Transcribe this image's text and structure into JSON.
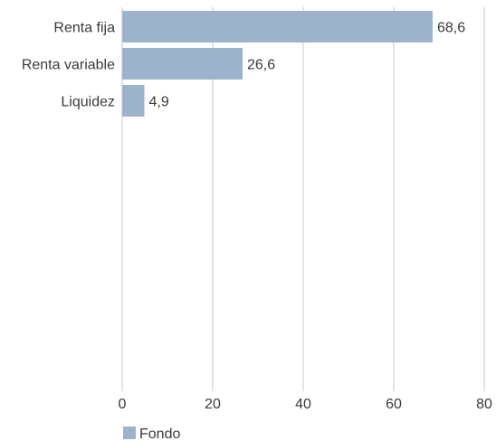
{
  "chart_data": {
    "type": "bar",
    "orientation": "horizontal",
    "categories": [
      "Renta fija",
      "Renta variable",
      "Liquidez"
    ],
    "series": [
      {
        "name": "Fondo",
        "values": [
          68.6,
          26.6,
          4.9
        ],
        "color": "#9db3cc"
      }
    ],
    "data_labels": [
      "68,6",
      "26,6",
      "4,9"
    ],
    "x_ticks": [
      "0",
      "20",
      "40",
      "60",
      "80"
    ],
    "xlim": [
      0,
      80
    ],
    "grid": "vertical",
    "legend": {
      "position": "bottom-left",
      "entries": [
        "Fondo"
      ]
    },
    "title": "",
    "xlabel": "",
    "ylabel": ""
  }
}
